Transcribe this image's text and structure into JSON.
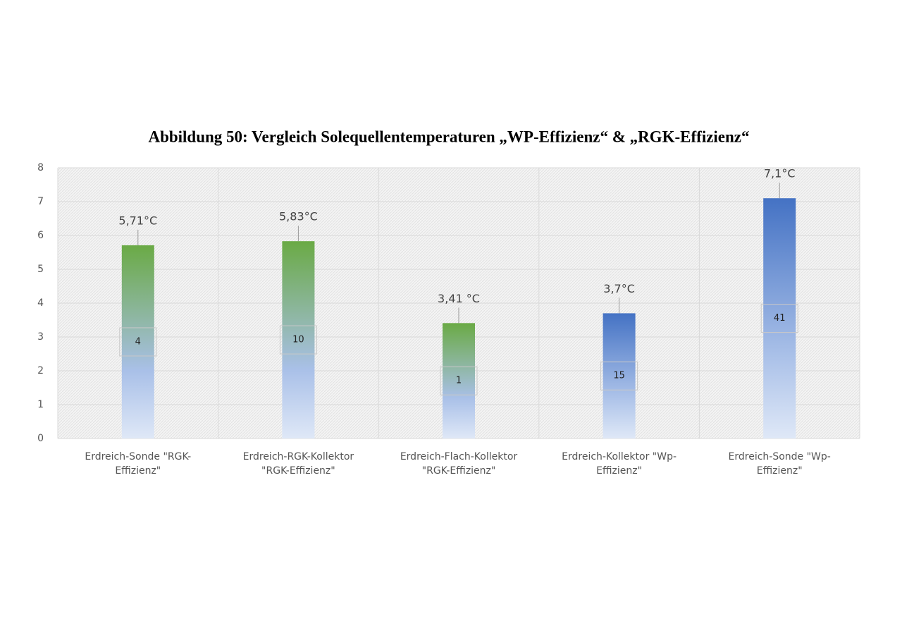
{
  "chart_data": {
    "type": "bar",
    "title": "Abbildung 50: Vergleich Solequellentemperaturen „WP-Effizienz“ & „RGK-Effizienz“",
    "categories": [
      "Erdreich-Sonde \"RGK-Effizienz\"",
      "Erdreich-RGK-Kollektor \"RGK-Effizienz\"",
      "Erdreich-Flach-Kollektor \"RGK-Effizienz\"",
      "Erdreich-Kollektor \"Wp-Effizienz\"",
      "Erdreich-Sonde \"Wp-Effizienz\""
    ],
    "values": [
      5.71,
      5.83,
      3.41,
      3.7,
      7.1
    ],
    "value_labels": [
      "5,71°C",
      "5,83°C",
      "3,41 °C",
      "3,7°C",
      "7,1°C"
    ],
    "inner_labels": [
      4,
      10,
      1,
      15,
      41
    ],
    "colors": [
      "#6aaa45",
      "#6aaa45",
      "#6aaa45",
      "#4472c4",
      "#4472c4"
    ],
    "ylim": [
      0,
      8
    ],
    "yticks": [
      0,
      1,
      2,
      3,
      4,
      5,
      6,
      7,
      8
    ],
    "grid": true
  }
}
